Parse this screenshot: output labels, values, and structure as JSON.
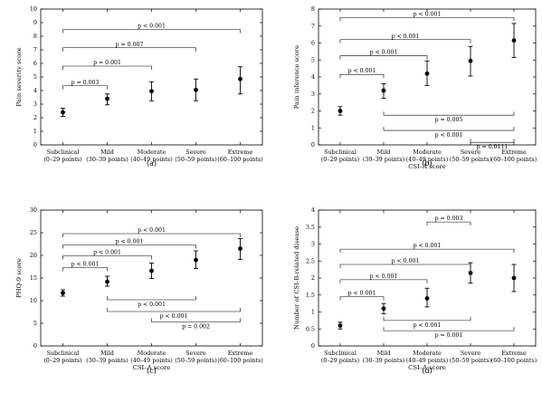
{
  "chart_data": [
    {
      "type": "scatter",
      "panel_label": "(a)",
      "ylabel": "Pain severity score",
      "xlabel": "",
      "ylim": [
        0,
        10
      ],
      "yticks": [
        0,
        1,
        2,
        3,
        4,
        5,
        6,
        7,
        8,
        9,
        10
      ],
      "categories": [
        {
          "name": "Subclinical",
          "range": "(0–29 points)"
        },
        {
          "name": "Mild",
          "range": "(30–39 points)"
        },
        {
          "name": "Moderate",
          "range": "(40–49 points)"
        },
        {
          "name": "Severe",
          "range": "(50–59 points)"
        },
        {
          "name": "Extreme",
          "range": "(60–100 points)"
        }
      ],
      "values": [
        2.4,
        3.4,
        3.95,
        4.05,
        4.85
      ],
      "err_low": [
        2.1,
        2.95,
        3.25,
        3.25,
        3.75
      ],
      "err_high": [
        2.7,
        3.75,
        4.65,
        4.85,
        5.75
      ],
      "comparisons": [
        {
          "from": 0,
          "to": 1,
          "label": "p = 0.003",
          "y": 4.35,
          "side": "top"
        },
        {
          "from": 0,
          "to": 2,
          "label": "p = 0.001",
          "y": 5.8,
          "side": "top"
        },
        {
          "from": 0,
          "to": 3,
          "label": "p = 0.007",
          "y": 7.15,
          "side": "top"
        },
        {
          "from": 0,
          "to": 4,
          "label": "p < 0.001",
          "y": 8.5,
          "side": "top"
        }
      ]
    },
    {
      "type": "scatter",
      "panel_label": "(b)",
      "ylabel": "Pain inference score",
      "xlabel": "CSI–A score",
      "ylim": [
        0,
        8
      ],
      "yticks": [
        0,
        1,
        2,
        3,
        4,
        5,
        6,
        7,
        8
      ],
      "categories": [
        {
          "name": "Subclinical",
          "range": "(0–29 points)"
        },
        {
          "name": "Mild",
          "range": "(30–39 points)"
        },
        {
          "name": "Moderate",
          "range": "(40–49 points)"
        },
        {
          "name": "Severe",
          "range": "(50–59 points)"
        },
        {
          "name": "Extreme",
          "range": "(60–100 points)"
        }
      ],
      "values": [
        2.0,
        3.2,
        4.2,
        4.95,
        6.15
      ],
      "err_low": [
        1.75,
        2.75,
        3.5,
        4.05,
        5.15
      ],
      "err_high": [
        2.25,
        3.6,
        4.95,
        5.8,
        7.15
      ],
      "comparisons": [
        {
          "from": 0,
          "to": 1,
          "label": "p < 0.001",
          "y": 4.15,
          "side": "top"
        },
        {
          "from": 0,
          "to": 2,
          "label": "p < 0.001",
          "y": 5.25,
          "side": "top"
        },
        {
          "from": 0,
          "to": 3,
          "label": "p < 0.001",
          "y": 6.2,
          "side": "top"
        },
        {
          "from": 0,
          "to": 4,
          "label": "p < 0.001",
          "y": 7.5,
          "side": "top"
        },
        {
          "from": 1,
          "to": 4,
          "label": "p = 0.005",
          "y": 1.75,
          "side": "bottom"
        },
        {
          "from": 1,
          "to": 4,
          "label": "p < 0.001",
          "y": 0.85,
          "side": "bottom"
        },
        {
          "from": 3,
          "to": 4,
          "label": "p = 0.0111",
          "y": 0.15,
          "side": "bottom"
        }
      ]
    },
    {
      "type": "scatter",
      "panel_label": "(c)",
      "ylabel": "PHQ-9 score",
      "xlabel": "CSI–A score",
      "ylim": [
        0,
        30
      ],
      "yticks": [
        0,
        5,
        10,
        15,
        20,
        25,
        30
      ],
      "categories": [
        {
          "name": "Subclinical",
          "range": "(0–29 points)"
        },
        {
          "name": "Mild",
          "range": "(30–39 points)"
        },
        {
          "name": "Moderate",
          "range": "(40–49 points)"
        },
        {
          "name": "Severe",
          "range": "(50–59 points)"
        },
        {
          "name": "Extreme",
          "range": "(60–100 points)"
        }
      ],
      "values": [
        11.7,
        14.2,
        16.6,
        19.0,
        21.5
      ],
      "err_low": [
        11.0,
        13.2,
        14.9,
        17.1,
        19.1
      ],
      "err_high": [
        12.4,
        15.4,
        18.3,
        21.0,
        23.7
      ],
      "comparisons": [
        {
          "from": 0,
          "to": 1,
          "label": "p < 0.001",
          "y": 17.3,
          "side": "top"
        },
        {
          "from": 0,
          "to": 2,
          "label": "p < 0.001",
          "y": 19.9,
          "side": "top"
        },
        {
          "from": 0,
          "to": 3,
          "label": "p < 0.001",
          "y": 22.3,
          "side": "top"
        },
        {
          "from": 0,
          "to": 4,
          "label": "p < 0.001",
          "y": 24.8,
          "side": "top"
        },
        {
          "from": 1,
          "to": 3,
          "label": "p < 0.001",
          "y": 10.2,
          "side": "bottom"
        },
        {
          "from": 1,
          "to": 4,
          "label": "p < 0.001",
          "y": 7.6,
          "side": "bottom"
        },
        {
          "from": 2,
          "to": 4,
          "label": "p = 0.002",
          "y": 5.3,
          "side": "bottom"
        }
      ]
    },
    {
      "type": "scatter",
      "panel_label": "(d)",
      "ylabel": "Number of CSI-B-related disease",
      "xlabel": "CSI–A score",
      "ylim": [
        0,
        4
      ],
      "yticks": [
        0,
        0.5,
        1,
        1.5,
        2,
        2.5,
        3,
        3.5,
        4
      ],
      "categories": [
        {
          "name": "Subclinical",
          "range": "(0–29 points)"
        },
        {
          "name": "Mild",
          "range": "(30–39 points)"
        },
        {
          "name": "Moderate",
          "range": "(40–49 points)"
        },
        {
          "name": "Severe",
          "range": "(50–59 points)"
        },
        {
          "name": "Extreme",
          "range": "(60–100 points)"
        }
      ],
      "values": [
        0.6,
        1.1,
        1.4,
        2.15,
        2.0
      ],
      "err_low": [
        0.5,
        0.95,
        1.15,
        1.85,
        1.6
      ],
      "err_high": [
        0.7,
        1.25,
        1.7,
        2.45,
        2.4
      ],
      "comparisons": [
        {
          "from": 2,
          "to": 3,
          "label": "p = 0.003",
          "y": 3.65,
          "side": "top"
        },
        {
          "from": 0,
          "to": 1,
          "label": "p < 0.001",
          "y": 1.45,
          "side": "top"
        },
        {
          "from": 0,
          "to": 2,
          "label": "p < 0.001",
          "y": 1.95,
          "side": "top"
        },
        {
          "from": 0,
          "to": 3,
          "label": "p < 0.001",
          "y": 2.4,
          "side": "top"
        },
        {
          "from": 0,
          "to": 4,
          "label": "p < 0.001",
          "y": 2.85,
          "side": "top"
        },
        {
          "from": 1,
          "to": 3,
          "label": "p < 0.001",
          "y": 0.75,
          "side": "bottom"
        },
        {
          "from": 1,
          "to": 4,
          "label": "p = 0.001",
          "y": 0.45,
          "side": "bottom"
        }
      ]
    }
  ]
}
